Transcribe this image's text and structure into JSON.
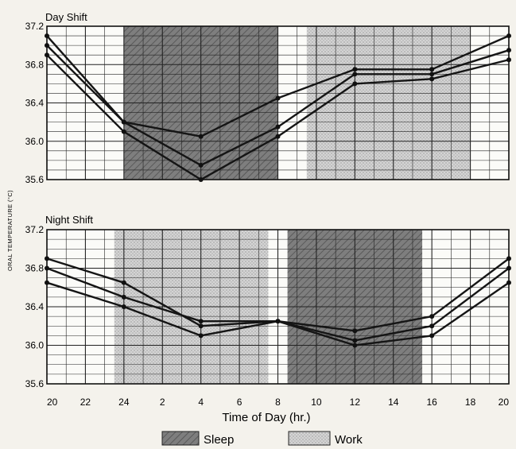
{
  "chart_data": {
    "type": "line",
    "xlabel": "Time of Day (hr.)",
    "ylabel": "ORAL TEMPERATURE (°C)",
    "x_tick_labels": [
      "20",
      "22",
      "24",
      "2",
      "4",
      "6",
      "8",
      "10",
      "12",
      "14",
      "16",
      "18",
      "20"
    ],
    "y_ticks": [
      35.6,
      36.0,
      36.4,
      36.8,
      37.2
    ],
    "y_tick_labels": [
      "35.6",
      "36.0",
      "36.4",
      "36.8",
      "37.2"
    ],
    "ylim": [
      35.6,
      37.2
    ],
    "grid": true,
    "legend": [
      {
        "label": "Sleep",
        "pattern": "dark-hatch"
      },
      {
        "label": "Work",
        "pattern": "light-dots"
      }
    ],
    "panels": [
      {
        "title": "Day Shift",
        "sleep_period": [
          24,
          32
        ],
        "work_period": [
          33.5,
          42
        ],
        "series": [
          {
            "x": [
              20,
              24,
              28,
              32,
              36,
              40,
              44
            ],
            "y": [
              37.1,
              36.2,
              36.05,
              36.45,
              36.75,
              36.75,
              37.1
            ]
          },
          {
            "x": [
              20,
              24,
              28,
              32,
              36,
              40,
              44
            ],
            "y": [
              37.0,
              36.2,
              35.75,
              36.15,
              36.7,
              36.7,
              36.95
            ]
          },
          {
            "x": [
              20,
              24,
              28,
              32,
              36,
              40,
              44
            ],
            "y": [
              36.9,
              36.1,
              35.6,
              36.05,
              36.6,
              36.65,
              36.85
            ]
          }
        ]
      },
      {
        "title": "Night Shift",
        "work_period": [
          23.5,
          31.5
        ],
        "sleep_period": [
          32.5,
          39.5
        ],
        "series": [
          {
            "x": [
              20,
              24,
              28,
              32,
              36,
              40,
              44
            ],
            "y": [
              36.9,
              36.65,
              36.2,
              36.25,
              36.15,
              36.3,
              36.9
            ]
          },
          {
            "x": [
              20,
              24,
              28,
              32,
              36,
              40,
              44
            ],
            "y": [
              36.8,
              36.5,
              36.25,
              36.25,
              36.05,
              36.2,
              36.8
            ]
          },
          {
            "x": [
              20,
              24,
              28,
              32,
              36,
              40,
              44
            ],
            "y": [
              36.65,
              36.4,
              36.1,
              36.25,
              36.0,
              36.1,
              36.65
            ]
          }
        ]
      }
    ]
  }
}
